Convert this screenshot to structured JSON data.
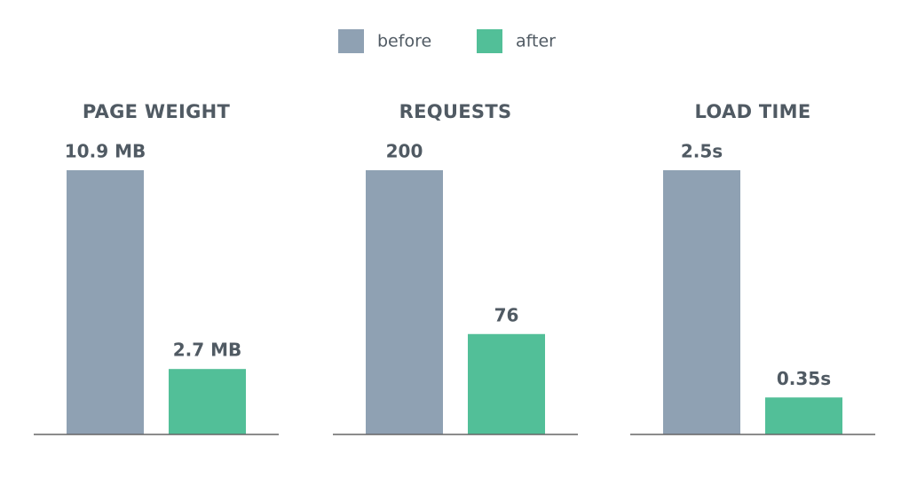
{
  "chart_data": [
    {
      "type": "bar",
      "title": "PAGE WEIGHT",
      "series": [
        {
          "name": "before",
          "color": "#8fa1b3",
          "values": [
            10.9
          ],
          "value_labels": [
            "10.9 MB"
          ]
        },
        {
          "name": "after",
          "color": "#52bf98",
          "values": [
            2.7
          ],
          "value_labels": [
            "2.7 MB"
          ]
        }
      ]
    },
    {
      "type": "bar",
      "title": "REQUESTS",
      "series": [
        {
          "name": "before",
          "color": "#8fa1b3",
          "values": [
            200
          ]
        },
        {
          "name": "after",
          "color": "#52bf98",
          "values": [
            76
          ]
        }
      ]
    },
    {
      "type": "bar",
      "title": "LOAD TIME",
      "series": [
        {
          "name": "before",
          "color": "#8fa1b3",
          "values": [
            2.5
          ],
          "value_labels": [
            "2.5s"
          ]
        },
        {
          "name": "after",
          "color": "#52bf98",
          "values": [
            0.35
          ],
          "value_labels": [
            "0.35s"
          ]
        }
      ]
    }
  ]
}
